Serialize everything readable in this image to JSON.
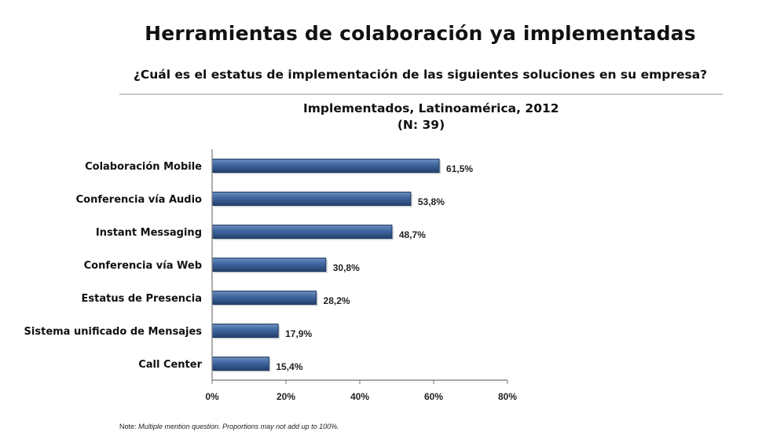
{
  "header": {
    "title": "Herramientas de colaboración ya implementadas",
    "subtitle": "¿Cuál es el estatus de implementación de las siguientes soluciones en su empresa?"
  },
  "chart_data": {
    "type": "bar",
    "orientation": "horizontal",
    "title": "Implementados, Latinoamérica, 2012",
    "subtitle": "(N: 39)",
    "categories": [
      "Colaboración Mobile",
      "Conferencia vía Audio",
      "Instant Messaging",
      "Conferencia vía Web",
      "Estatus de Presencia",
      "Sistema unificado de Mensajes",
      "Call Center"
    ],
    "values": [
      61.5,
      53.8,
      48.7,
      30.8,
      28.2,
      17.9,
      15.4
    ],
    "value_labels": [
      "61,5%",
      "53,8%",
      "48,7%",
      "30,8%",
      "28,2%",
      "17,9%",
      "15,4%"
    ],
    "xlim": [
      0,
      80
    ],
    "xticks": [
      0,
      20,
      40,
      60,
      80
    ],
    "xtick_labels": [
      "0%",
      "20%",
      "40%",
      "60%",
      "80%"
    ],
    "grid": false,
    "bar_color": "#3a5f92"
  },
  "footer": {
    "note_lead": "Note:",
    "note_text": "Multiple mention question. Proportions may not add up to 100%."
  }
}
